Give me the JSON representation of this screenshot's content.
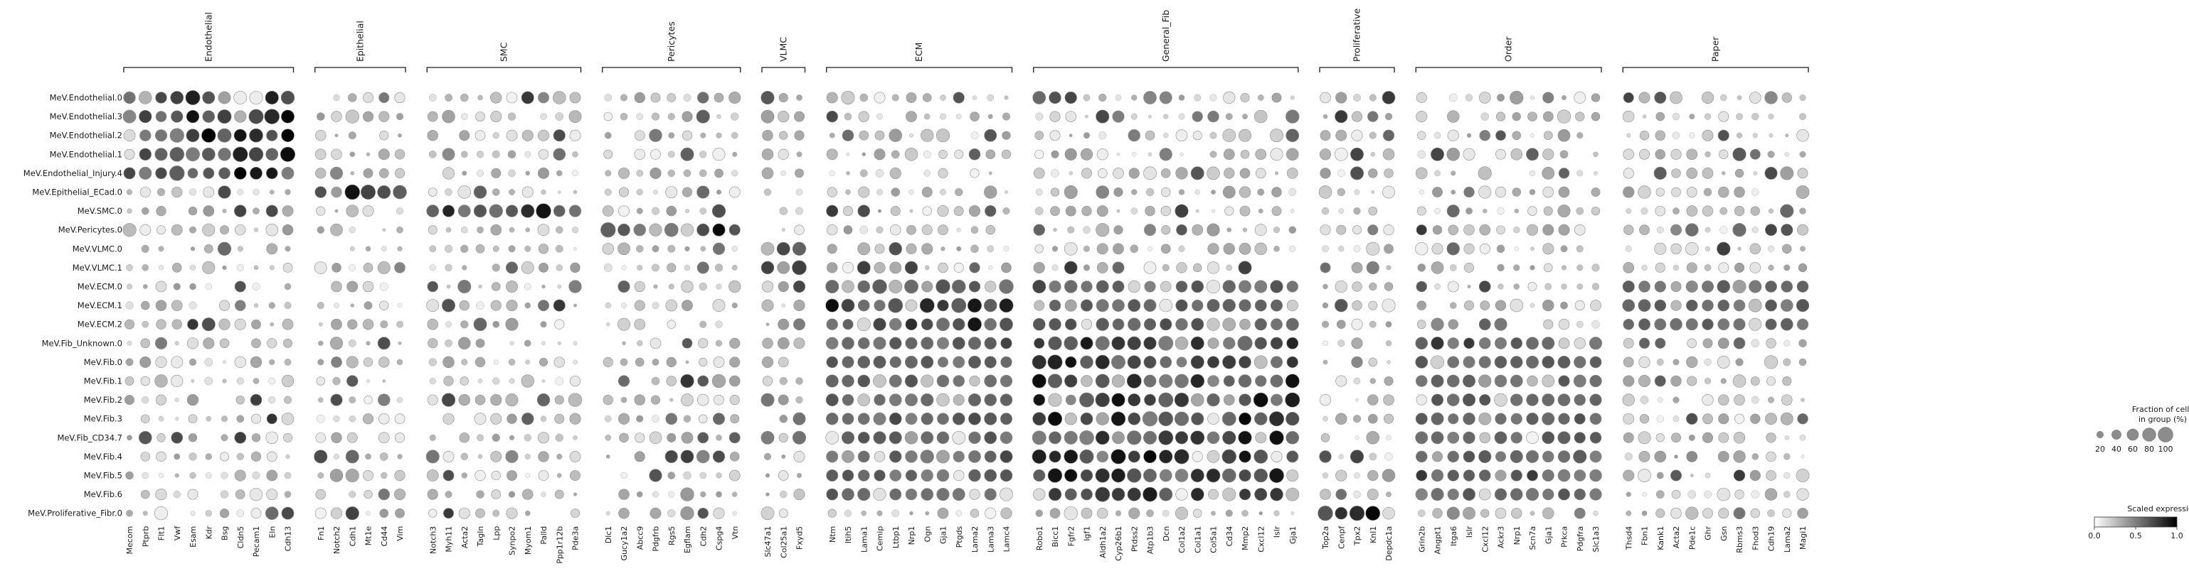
{
  "chart_data": {
    "type": "dotplot",
    "groups": [
      {
        "name": "Endothelial",
        "genes": [
          "Mecom",
          "Ptprb",
          "Flt1",
          "Vwf",
          "Esam",
          "Kdr",
          "Bsg",
          "Cldn5",
          "Pecam1",
          "Eln",
          "Cdh13"
        ]
      },
      {
        "name": "Epithelial",
        "genes": [
          "Fn1",
          "Notch2",
          "Cdh1",
          "Mt1e",
          "Cd44",
          "Vim"
        ]
      },
      {
        "name": "SMC",
        "genes": [
          "Notch3",
          "Myh11",
          "Acta2",
          "Tagln",
          "Lpp",
          "Synpo2",
          "Myom1",
          "Palld",
          "Ppp1r12b",
          "Pde3a"
        ]
      },
      {
        "name": "Pericytes",
        "genes": [
          "Dlc1",
          "Gucy1a2",
          "Abcc9",
          "Pdgfrb",
          "Rgs5",
          "Egflam",
          "Cdh2",
          "Cspg4",
          "Vtn"
        ]
      },
      {
        "name": "VLMC",
        "genes": [
          "Slc47a1",
          "Col25a1",
          "Fxyd5"
        ]
      },
      {
        "name": "ECM",
        "genes": [
          "Ntm",
          "Itih5",
          "Lama1",
          "Cemip",
          "Ltbp1",
          "Nrp1",
          "Ogn",
          "Gja1",
          "Ptgds",
          "Lama2",
          "Lama3",
          "Lamc4"
        ]
      },
      {
        "name": "General_Fib",
        "genes": [
          "Robo1",
          "Bicc1",
          "Fgfr2",
          "Igf1",
          "Aldh1a2",
          "Cyp26b1",
          "Ptdss2",
          "Atp1b3",
          "Dcn",
          "Col1a2",
          "Col1a1",
          "Col5a1",
          "Cd34",
          "Mmp2",
          "Cxcl12",
          "Islr",
          "Gja1"
        ]
      },
      {
        "name": "Proliferative",
        "genes": [
          "Top2a",
          "Cenpf",
          "Tpx2",
          "Knl1",
          "Depdc1a"
        ]
      },
      {
        "name": "Order",
        "genes": [
          "Grin2b",
          "Angpt1",
          "Itga6",
          "Islr",
          "Cxcl12",
          "Ackr3",
          "Nrp1",
          "Scn7a",
          "Gja1",
          "Prkca",
          "Pdgfra",
          "Slc1a3"
        ]
      },
      {
        "name": "Paper",
        "genes": [
          "Thsd4",
          "Fbn1",
          "Kank1",
          "Acta2",
          "Pde1c",
          "Ghr",
          "Gsn",
          "Rbms3",
          "Fhod3",
          "Cdh19",
          "Lama2",
          "Magi1"
        ]
      }
    ],
    "rows": [
      "MeV.Endothelial.0",
      "MeV.Endothelial.3",
      "MeV.Endothelial.2",
      "MeV.Endothelial.1",
      "MeV.Endothelial_Injury.4",
      "MeV.Epithelial_ECad.0",
      "MeV.SMC.0",
      "MeV.Pericytes.0",
      "MeV.VLMC.0",
      "MeV.VLMC.1",
      "MeV.ECM.0",
      "MeV.ECM.1",
      "MeV.ECM.2",
      "MeV.Fib_Unknown.0",
      "MeV.Fib.0",
      "MeV.Fib.1",
      "MeV.Fib.2",
      "MeV.Fib.3",
      "MeV.Fib_CD34.7",
      "MeV.Fib.4",
      "MeV.Fib.5",
      "MeV.Fib.6",
      "MeV.Proliferative_Fibr.0"
    ],
    "cell_group_of_rows": [
      0,
      0,
      0,
      0,
      0,
      1,
      2,
      3,
      4,
      4,
      5,
      5,
      5,
      6,
      6,
      6,
      6,
      6,
      6,
      6,
      6,
      6,
      7
    ],
    "size_legend": {
      "title": "Fraction of cells\nin group (%)",
      "values": [
        20,
        40,
        60,
        80,
        100
      ]
    },
    "color_legend": {
      "title": "Scaled expression",
      "ticks": [
        "0.0",
        "0.5",
        "1.0"
      ],
      "range": [
        0,
        1
      ],
      "colormap": "greys"
    }
  }
}
